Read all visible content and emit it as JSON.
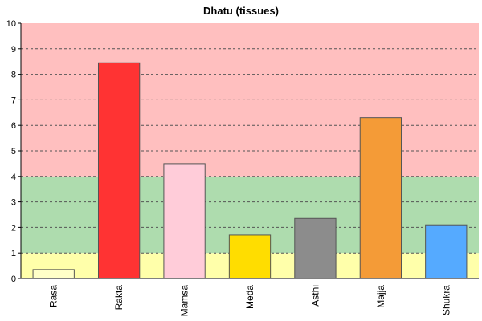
{
  "chart_data": {
    "type": "bar",
    "title": "Dhatu (tissues)",
    "xlabel": "",
    "ylabel": "",
    "categories": [
      "Rasa",
      "Rakta",
      "Mamsa",
      "Meda",
      "Asthi",
      "Majja",
      "Shukra"
    ],
    "values": [
      0.35,
      8.45,
      4.5,
      1.7,
      2.35,
      6.3,
      2.1
    ],
    "bar_colors": [
      "#ffffc8",
      "#ff3333",
      "#ffccd9",
      "#ffdd00",
      "#8c8c8c",
      "#f49b37",
      "#55aaff"
    ],
    "ylim": [
      0,
      10
    ],
    "yticks": [
      "0",
      "1",
      "2",
      "3",
      "4",
      "5",
      "6",
      "7",
      "8",
      "9",
      "10"
    ],
    "grid": true,
    "background_bands": [
      {
        "from": 0,
        "to": 1,
        "color": "#ffffaa"
      },
      {
        "from": 1,
        "to": 4,
        "color": "#aedcae"
      },
      {
        "from": 4,
        "to": 10,
        "color": "#ffbfbf"
      }
    ]
  }
}
